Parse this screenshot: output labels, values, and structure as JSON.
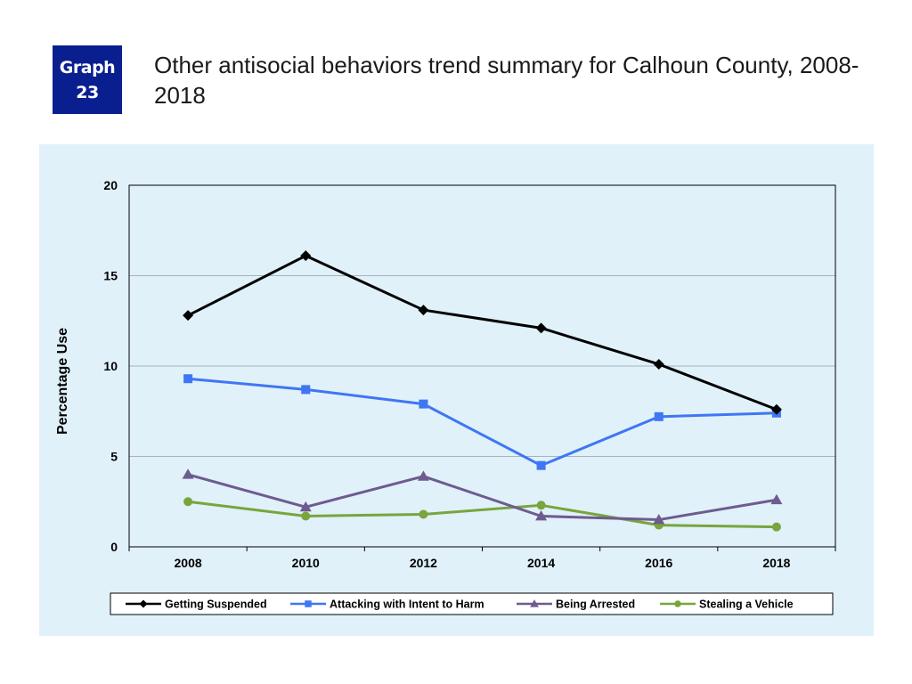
{
  "badge": {
    "line1": "Graph",
    "line2": "23"
  },
  "title": "Other antisocial behaviors trend summary for Calhoun County, 2008-2018",
  "chart_data": {
    "type": "line",
    "title": "Other antisocial behaviors trend summary for Calhoun County, 2008-2018",
    "xlabel": "",
    "ylabel": "Percentage Use",
    "x": [
      "2008",
      "2010",
      "2012",
      "2014",
      "2016",
      "2018"
    ],
    "ylim": [
      0,
      20
    ],
    "yticks": [
      0,
      5,
      10,
      15,
      20
    ],
    "grid": true,
    "legend_position": "bottom",
    "series": [
      {
        "name": "Getting Suspended",
        "values": [
          12.8,
          16.1,
          13.1,
          12.1,
          10.1,
          7.6
        ],
        "color": "#000000",
        "marker": "diamond"
      },
      {
        "name": "Attacking with Intent to Harm",
        "values": [
          9.3,
          8.7,
          7.9,
          4.5,
          7.2,
          7.4
        ],
        "color": "#3f76f4",
        "marker": "square"
      },
      {
        "name": "Being Arrested",
        "values": [
          4.0,
          2.2,
          3.9,
          1.7,
          1.5,
          2.6
        ],
        "color": "#6e5b8f",
        "marker": "triangle"
      },
      {
        "name": "Stealing a Vehicle",
        "values": [
          2.5,
          1.7,
          1.8,
          2.3,
          1.2,
          1.1
        ],
        "color": "#78a53c",
        "marker": "circle"
      }
    ]
  }
}
